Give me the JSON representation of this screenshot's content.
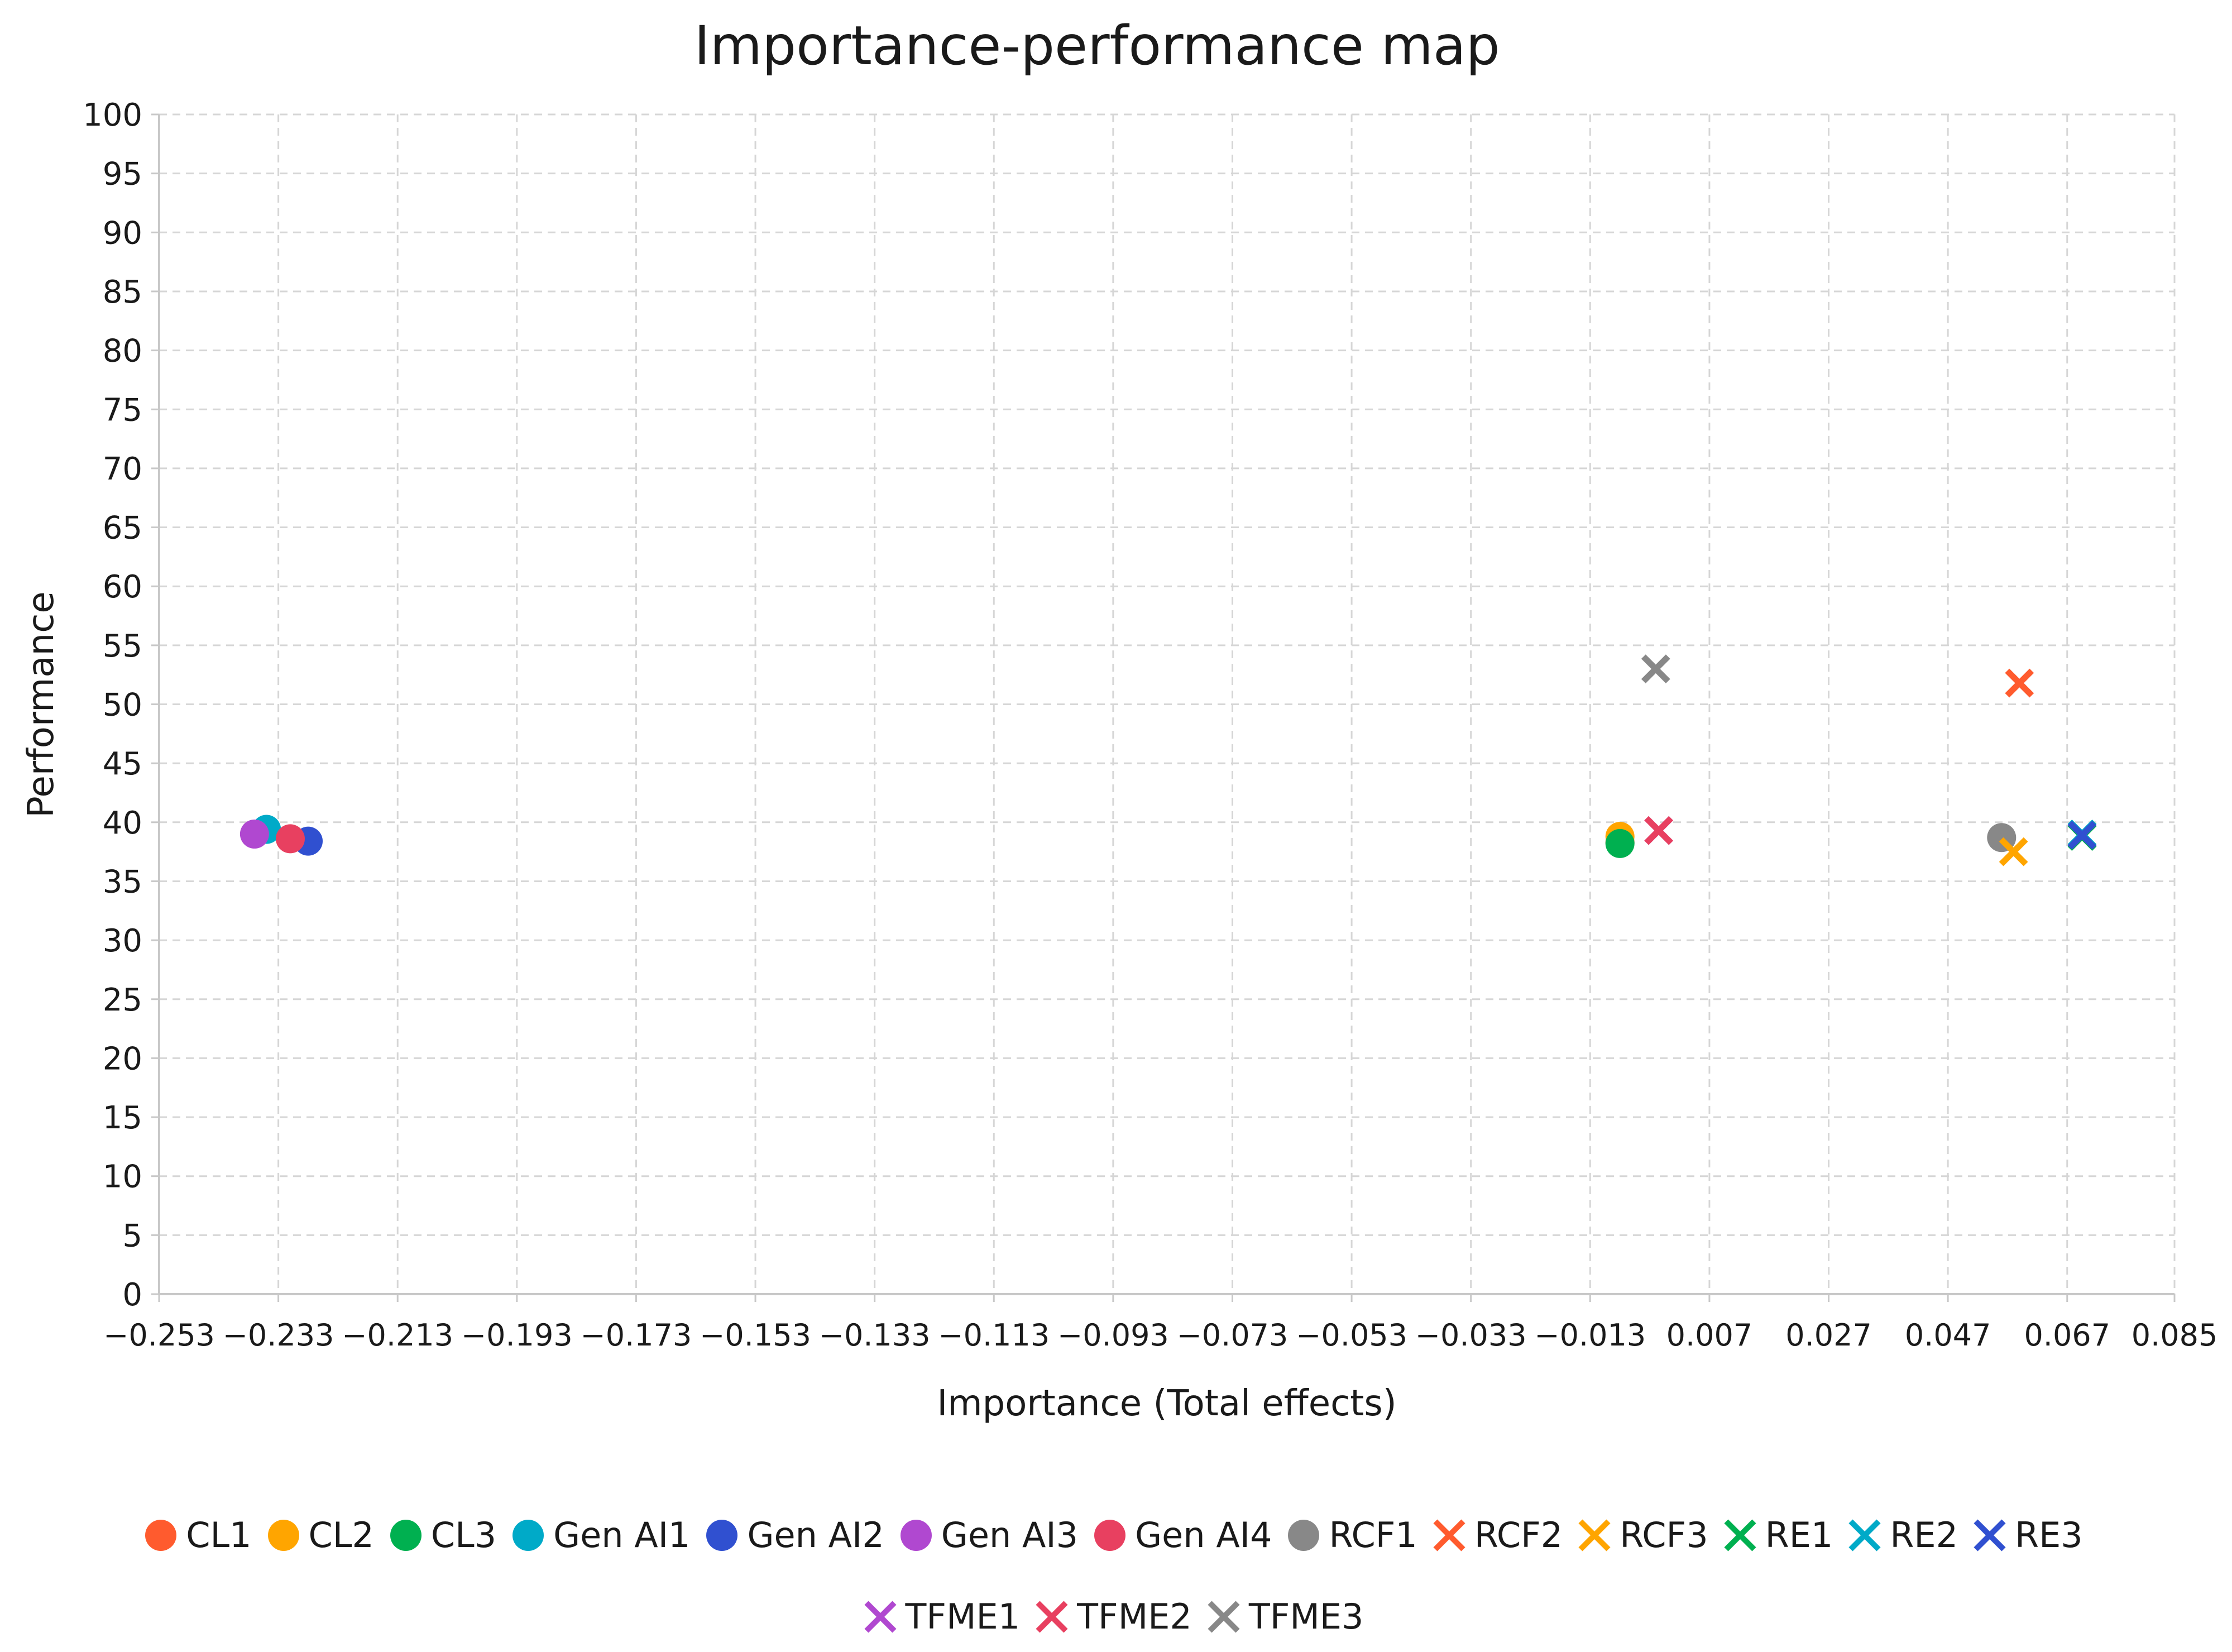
{
  "chart_data": {
    "type": "scatter",
    "title": "Importance-performance map",
    "xlabel": "Importance (Total effects)",
    "ylabel": "Performance",
    "xlim": [
      -0.253,
      0.085
    ],
    "ylim": [
      0,
      100
    ],
    "x_ticks": [
      "−0.253",
      "−0.233",
      "−0.213",
      "−0.193",
      "−0.173",
      "−0.153",
      "−0.133",
      "−0.113",
      "−0.093",
      "−0.073",
      "−0.053",
      "−0.033",
      "−0.013",
      "0.007",
      "0.027",
      "0.047",
      "0.067",
      "0.085"
    ],
    "y_ticks": [
      "0",
      "5",
      "10",
      "15",
      "20",
      "25",
      "30",
      "35",
      "40",
      "45",
      "50",
      "55",
      "60",
      "65",
      "70",
      "75",
      "80",
      "85",
      "90",
      "95",
      "100"
    ],
    "grid": true,
    "legend_position": "bottom",
    "series": [
      {
        "name": "CL1",
        "marker": "circle",
        "color": "#ff5b2e",
        "x": -0.008,
        "y": 38.3
      },
      {
        "name": "CL2",
        "marker": "circle",
        "color": "#ffa500",
        "x": -0.008,
        "y": 38.8
      },
      {
        "name": "CL3",
        "marker": "circle",
        "color": "#00b050",
        "x": -0.008,
        "y": 38.2
      },
      {
        "name": "Gen AI1",
        "marker": "circle",
        "color": "#00aac8",
        "x": -0.235,
        "y": 39.4
      },
      {
        "name": "Gen AI2",
        "marker": "circle",
        "color": "#3050d0",
        "x": -0.228,
        "y": 38.4
      },
      {
        "name": "Gen AI3",
        "marker": "circle",
        "color": "#b048d0",
        "x": -0.237,
        "y": 39.0
      },
      {
        "name": "Gen AI4",
        "marker": "circle",
        "color": "#e84060",
        "x": -0.231,
        "y": 38.6
      },
      {
        "name": "RCF1",
        "marker": "circle",
        "color": "#888888",
        "x": 0.056,
        "y": 38.7
      },
      {
        "name": "RCF2",
        "marker": "cross",
        "color": "#ff5b2e",
        "x": 0.059,
        "y": 51.8
      },
      {
        "name": "RCF3",
        "marker": "cross",
        "color": "#ffa500",
        "x": 0.058,
        "y": 37.5
      },
      {
        "name": "RE1",
        "marker": "cross",
        "color": "#00b050",
        "x": 0.0695,
        "y": 38.8
      },
      {
        "name": "RE2",
        "marker": "cross",
        "color": "#00aac8",
        "x": 0.0695,
        "y": 39.0
      },
      {
        "name": "RE3",
        "marker": "cross",
        "color": "#3050d0",
        "x": 0.0695,
        "y": 38.9
      },
      {
        "name": "TFME1",
        "marker": "cross",
        "color": "#b048d0",
        "x": -0.0015,
        "y": 39.3
      },
      {
        "name": "TFME2",
        "marker": "cross",
        "color": "#e84060",
        "x": -0.0015,
        "y": 39.3
      },
      {
        "name": "TFME3",
        "marker": "cross",
        "color": "#888888",
        "x": -0.002,
        "y": 53.0
      }
    ]
  }
}
